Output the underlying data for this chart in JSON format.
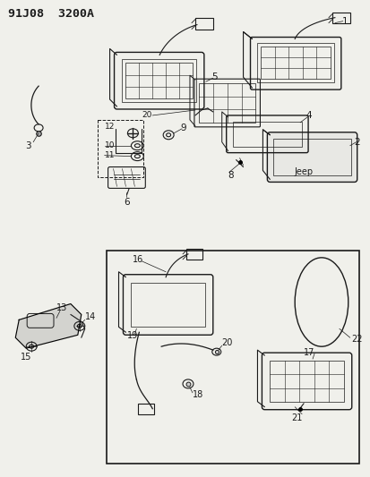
{
  "title": "91J08  3200A",
  "bg": "#f5f5f0",
  "fg": "#222222",
  "fig_width": 4.14,
  "fig_height": 5.33,
  "dpi": 100
}
